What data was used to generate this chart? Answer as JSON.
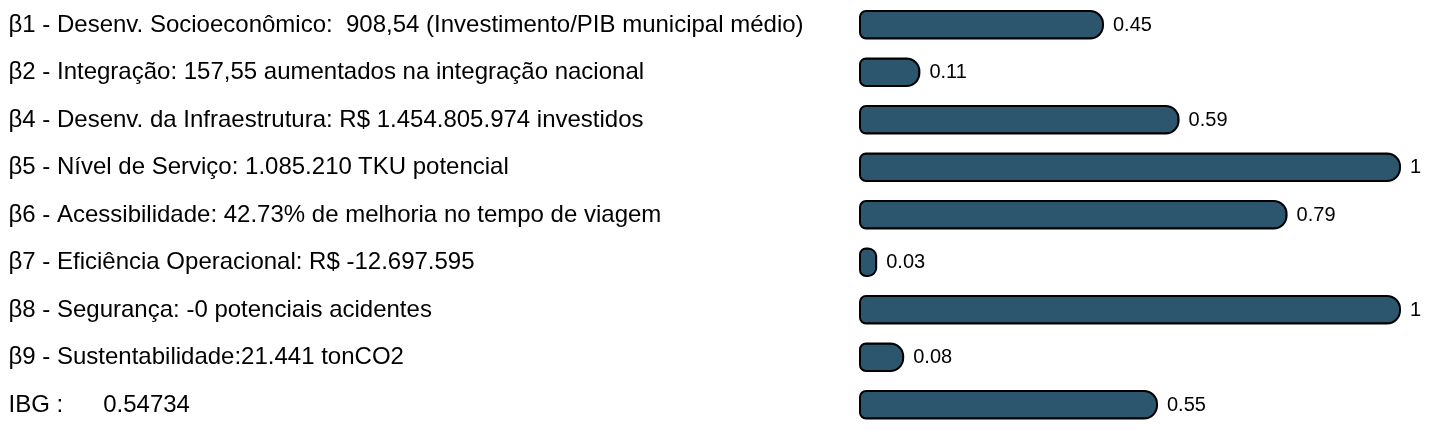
{
  "chart_data": {
    "type": "bar",
    "orientation": "horizontal",
    "categories": [
      "β1 - Desenv. Socioeconômico:  908,54 (Investimento/PIB municipal médio)",
      "β2 - Integração: 157,55 aumentados na integração nacional",
      "β4 - Desenv. da Infraestrutura: R$ 1.454.805.974 investidos",
      "β5 - Nível de Serviço: 1.085.210 TKU potencial",
      "β6 - Acessibilidade: 42.73% de melhoria no tempo de viagem",
      "β7 - Eficiência Operacional: R$ -12.697.595",
      "β8 - Segurança: -0 potenciais acidentes",
      "β9 - Sustentabilidade:21.441 tonCO2",
      "IBG :      0.54734"
    ],
    "values": [
      0.45,
      0.11,
      0.59,
      1,
      0.79,
      0.03,
      1,
      0.08,
      0.55
    ],
    "color": "#2b566d",
    "data_labels": true
  }
}
